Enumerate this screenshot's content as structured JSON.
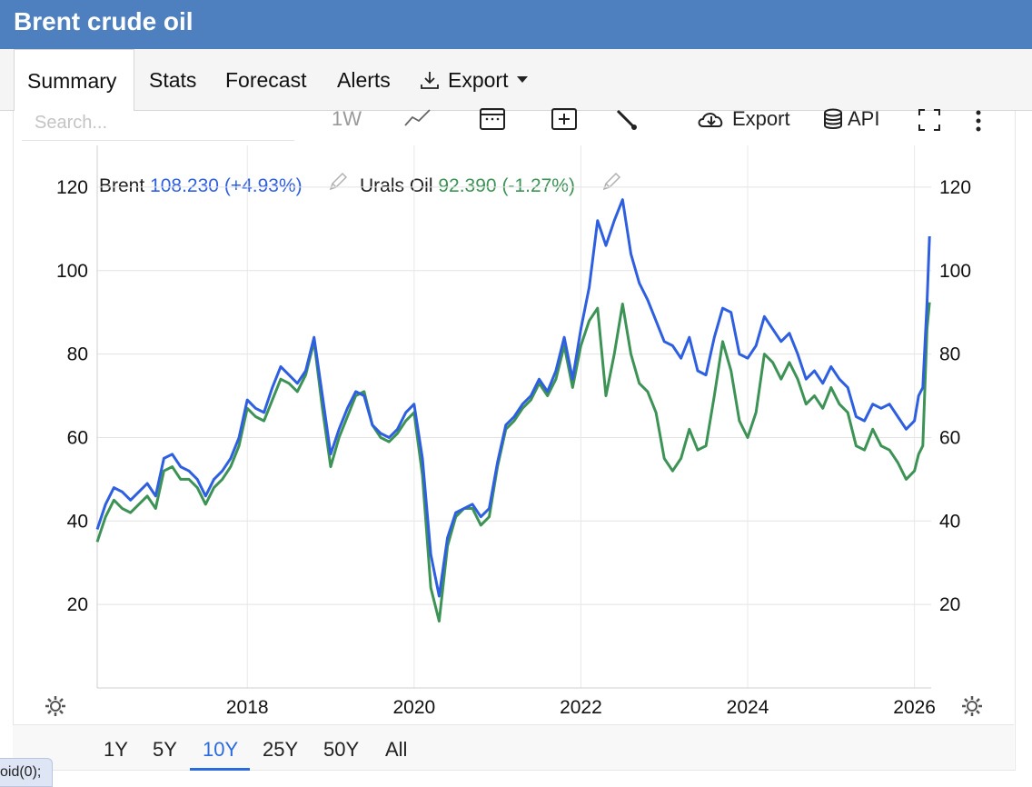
{
  "title": "Brent crude oil",
  "tabs": [
    {
      "label": "Summary"
    },
    {
      "label": "Stats"
    },
    {
      "label": "Forecast"
    },
    {
      "label": "Alerts"
    },
    {
      "label": "Export"
    }
  ],
  "active_tab": "Summary",
  "search": {
    "placeholder": "Search..."
  },
  "toolbar": {
    "interval_label": "1W",
    "export_label": "Export",
    "api_label": "API"
  },
  "legend": {
    "brent": {
      "name": "Brent",
      "value": "108.230",
      "change": "(+4.93%)",
      "color": "#2e5fe0"
    },
    "urals": {
      "name": "Urals Oil",
      "value": "92.390",
      "change": "(-1.27%)",
      "color": "#3d9356"
    }
  },
  "range_buttons": [
    "1Y",
    "5Y",
    "10Y",
    "25Y",
    "50Y",
    "All"
  ],
  "active_range": "10Y",
  "status_text": "oid(0);",
  "chart_data": {
    "type": "line",
    "x_unit": "year",
    "xlim": [
      2016.2,
      2026.2
    ],
    "ylim": [
      0,
      130
    ],
    "y_ticks": [
      20,
      40,
      60,
      80,
      100,
      120
    ],
    "x_ticks": [
      "2018",
      "2020",
      "2022",
      "2024",
      "2026"
    ],
    "grid": true,
    "dual_y_axis_labels": true,
    "series": [
      {
        "name": "Brent",
        "color": "#2e5fe0",
        "points": [
          [
            2016.2,
            38
          ],
          [
            2016.3,
            44
          ],
          [
            2016.4,
            48
          ],
          [
            2016.5,
            47
          ],
          [
            2016.6,
            45
          ],
          [
            2016.7,
            47
          ],
          [
            2016.8,
            49
          ],
          [
            2016.9,
            46
          ],
          [
            2017.0,
            55
          ],
          [
            2017.1,
            56
          ],
          [
            2017.2,
            53
          ],
          [
            2017.3,
            52
          ],
          [
            2017.4,
            50
          ],
          [
            2017.5,
            46
          ],
          [
            2017.6,
            50
          ],
          [
            2017.7,
            52
          ],
          [
            2017.8,
            55
          ],
          [
            2017.9,
            60
          ],
          [
            2018.0,
            69
          ],
          [
            2018.1,
            67
          ],
          [
            2018.2,
            66
          ],
          [
            2018.3,
            72
          ],
          [
            2018.4,
            77
          ],
          [
            2018.5,
            75
          ],
          [
            2018.6,
            73
          ],
          [
            2018.7,
            76
          ],
          [
            2018.8,
            84
          ],
          [
            2018.9,
            70
          ],
          [
            2019.0,
            56
          ],
          [
            2019.1,
            62
          ],
          [
            2019.2,
            67
          ],
          [
            2019.3,
            71
          ],
          [
            2019.4,
            70
          ],
          [
            2019.5,
            63
          ],
          [
            2019.6,
            61
          ],
          [
            2019.7,
            60
          ],
          [
            2019.8,
            62
          ],
          [
            2019.9,
            66
          ],
          [
            2020.0,
            68
          ],
          [
            2020.1,
            55
          ],
          [
            2020.2,
            32
          ],
          [
            2020.3,
            22
          ],
          [
            2020.4,
            36
          ],
          [
            2020.5,
            42
          ],
          [
            2020.6,
            43
          ],
          [
            2020.7,
            44
          ],
          [
            2020.8,
            41
          ],
          [
            2020.9,
            43
          ],
          [
            2021.0,
            54
          ],
          [
            2021.1,
            63
          ],
          [
            2021.2,
            65
          ],
          [
            2021.3,
            68
          ],
          [
            2021.4,
            70
          ],
          [
            2021.5,
            74
          ],
          [
            2021.6,
            71
          ],
          [
            2021.7,
            76
          ],
          [
            2021.8,
            84
          ],
          [
            2021.9,
            74
          ],
          [
            2022.0,
            86
          ],
          [
            2022.1,
            96
          ],
          [
            2022.2,
            112
          ],
          [
            2022.3,
            106
          ],
          [
            2022.4,
            112
          ],
          [
            2022.5,
            117
          ],
          [
            2022.6,
            104
          ],
          [
            2022.7,
            97
          ],
          [
            2022.8,
            93
          ],
          [
            2022.9,
            88
          ],
          [
            2023.0,
            83
          ],
          [
            2023.1,
            82
          ],
          [
            2023.2,
            79
          ],
          [
            2023.3,
            84
          ],
          [
            2023.4,
            76
          ],
          [
            2023.5,
            75
          ],
          [
            2023.6,
            84
          ],
          [
            2023.7,
            91
          ],
          [
            2023.8,
            90
          ],
          [
            2023.9,
            80
          ],
          [
            2024.0,
            79
          ],
          [
            2024.1,
            82
          ],
          [
            2024.2,
            89
          ],
          [
            2024.3,
            86
          ],
          [
            2024.4,
            83
          ],
          [
            2024.5,
            85
          ],
          [
            2024.6,
            80
          ],
          [
            2024.7,
            74
          ],
          [
            2024.8,
            76
          ],
          [
            2024.9,
            73
          ],
          [
            2025.0,
            77
          ],
          [
            2025.1,
            74
          ],
          [
            2025.2,
            72
          ],
          [
            2025.3,
            65
          ],
          [
            2025.4,
            64
          ],
          [
            2025.5,
            68
          ],
          [
            2025.6,
            67
          ],
          [
            2025.7,
            68
          ],
          [
            2025.8,
            65
          ],
          [
            2025.9,
            62
          ],
          [
            2026.0,
            64
          ],
          [
            2026.05,
            70
          ],
          [
            2026.1,
            72
          ],
          [
            2026.15,
            92
          ],
          [
            2026.18,
            108.23
          ]
        ]
      },
      {
        "name": "Urals Oil",
        "color": "#3d9356",
        "points": [
          [
            2016.2,
            35
          ],
          [
            2016.3,
            41
          ],
          [
            2016.4,
            45
          ],
          [
            2016.5,
            43
          ],
          [
            2016.6,
            42
          ],
          [
            2016.7,
            44
          ],
          [
            2016.8,
            46
          ],
          [
            2016.9,
            43
          ],
          [
            2017.0,
            52
          ],
          [
            2017.1,
            53
          ],
          [
            2017.2,
            50
          ],
          [
            2017.3,
            50
          ],
          [
            2017.4,
            48
          ],
          [
            2017.5,
            44
          ],
          [
            2017.6,
            48
          ],
          [
            2017.7,
            50
          ],
          [
            2017.8,
            53
          ],
          [
            2017.9,
            58
          ],
          [
            2018.0,
            67
          ],
          [
            2018.1,
            65
          ],
          [
            2018.2,
            64
          ],
          [
            2018.3,
            69
          ],
          [
            2018.4,
            74
          ],
          [
            2018.5,
            73
          ],
          [
            2018.6,
            71
          ],
          [
            2018.7,
            75
          ],
          [
            2018.8,
            83
          ],
          [
            2018.9,
            67
          ],
          [
            2019.0,
            53
          ],
          [
            2019.1,
            60
          ],
          [
            2019.2,
            65
          ],
          [
            2019.3,
            70
          ],
          [
            2019.4,
            71
          ],
          [
            2019.5,
            63
          ],
          [
            2019.6,
            60
          ],
          [
            2019.7,
            59
          ],
          [
            2019.8,
            61
          ],
          [
            2019.9,
            64
          ],
          [
            2020.0,
            66
          ],
          [
            2020.1,
            51
          ],
          [
            2020.2,
            24
          ],
          [
            2020.3,
            16
          ],
          [
            2020.4,
            34
          ],
          [
            2020.5,
            41
          ],
          [
            2020.6,
            43
          ],
          [
            2020.7,
            43
          ],
          [
            2020.8,
            39
          ],
          [
            2020.9,
            41
          ],
          [
            2021.0,
            53
          ],
          [
            2021.1,
            62
          ],
          [
            2021.2,
            64
          ],
          [
            2021.3,
            67
          ],
          [
            2021.4,
            69
          ],
          [
            2021.5,
            73
          ],
          [
            2021.6,
            70
          ],
          [
            2021.7,
            74
          ],
          [
            2021.8,
            82
          ],
          [
            2021.9,
            72
          ],
          [
            2022.0,
            82
          ],
          [
            2022.1,
            88
          ],
          [
            2022.2,
            91
          ],
          [
            2022.3,
            70
          ],
          [
            2022.4,
            80
          ],
          [
            2022.5,
            92
          ],
          [
            2022.6,
            80
          ],
          [
            2022.7,
            73
          ],
          [
            2022.8,
            71
          ],
          [
            2022.9,
            66
          ],
          [
            2023.0,
            55
          ],
          [
            2023.1,
            52
          ],
          [
            2023.2,
            55
          ],
          [
            2023.3,
            62
          ],
          [
            2023.4,
            57
          ],
          [
            2023.5,
            58
          ],
          [
            2023.6,
            70
          ],
          [
            2023.7,
            83
          ],
          [
            2023.8,
            76
          ],
          [
            2023.9,
            64
          ],
          [
            2024.0,
            60
          ],
          [
            2024.1,
            66
          ],
          [
            2024.2,
            80
          ],
          [
            2024.3,
            78
          ],
          [
            2024.4,
            74
          ],
          [
            2024.5,
            78
          ],
          [
            2024.6,
            74
          ],
          [
            2024.7,
            68
          ],
          [
            2024.8,
            70
          ],
          [
            2024.9,
            67
          ],
          [
            2025.0,
            72
          ],
          [
            2025.1,
            68
          ],
          [
            2025.2,
            66
          ],
          [
            2025.3,
            58
          ],
          [
            2025.4,
            57
          ],
          [
            2025.5,
            62
          ],
          [
            2025.6,
            58
          ],
          [
            2025.7,
            57
          ],
          [
            2025.8,
            54
          ],
          [
            2025.9,
            50
          ],
          [
            2026.0,
            52
          ],
          [
            2026.05,
            56
          ],
          [
            2026.1,
            58
          ],
          [
            2026.15,
            86
          ],
          [
            2026.18,
            92.39
          ]
        ]
      }
    ]
  }
}
